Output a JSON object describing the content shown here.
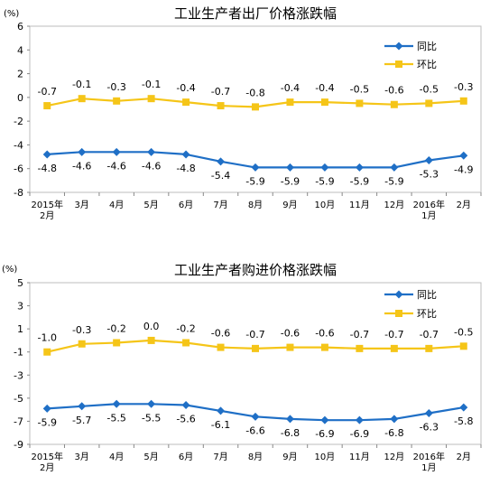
{
  "chart_data": [
    {
      "type": "line",
      "title": "工业生产者出厂价格涨跌幅",
      "unit_label": "(%)",
      "ylim": [
        -8,
        6
      ],
      "yticks": [
        6,
        4,
        2,
        0,
        -2,
        -4,
        -6,
        -8
      ],
      "grid": false,
      "legend_position": "top-right",
      "categories": [
        [
          "2015年",
          "2月"
        ],
        [
          "3月"
        ],
        [
          "4月"
        ],
        [
          "5月"
        ],
        [
          "6月"
        ],
        [
          "7月"
        ],
        [
          "8月"
        ],
        [
          "9月"
        ],
        [
          "10月"
        ],
        [
          "11月"
        ],
        [
          "12月"
        ],
        [
          "2016年",
          "1月"
        ],
        [
          "2月"
        ]
      ],
      "series": [
        {
          "name": "同比",
          "color": "#1f6fc6",
          "marker": "diamond",
          "label_position": "below",
          "values": [
            -4.8,
            -4.6,
            -4.6,
            -4.6,
            -4.8,
            -5.4,
            -5.9,
            -5.9,
            -5.9,
            -5.9,
            -5.9,
            -5.3,
            -4.9
          ]
        },
        {
          "name": "环比",
          "color": "#f5c518",
          "marker": "square",
          "label_position": "above",
          "values": [
            -0.7,
            -0.1,
            -0.3,
            -0.1,
            -0.4,
            -0.7,
            -0.8,
            -0.4,
            -0.4,
            -0.5,
            -0.6,
            -0.5,
            -0.3
          ]
        }
      ]
    },
    {
      "type": "line",
      "title": "工业生产者购进价格涨跌幅",
      "unit_label": "(%)",
      "ylim": [
        -9,
        5
      ],
      "yticks": [
        5,
        3,
        1,
        -1,
        -3,
        -5,
        -7,
        -9
      ],
      "grid": false,
      "legend_position": "top-right",
      "categories": [
        [
          "2015年",
          "2月"
        ],
        [
          "3月"
        ],
        [
          "4月"
        ],
        [
          "5月"
        ],
        [
          "6月"
        ],
        [
          "7月"
        ],
        [
          "8月"
        ],
        [
          "9月"
        ],
        [
          "10月"
        ],
        [
          "11月"
        ],
        [
          "12月"
        ],
        [
          "2016年",
          "1月"
        ],
        [
          "2月"
        ]
      ],
      "series": [
        {
          "name": "同比",
          "color": "#1f6fc6",
          "marker": "diamond",
          "label_position": "below",
          "values": [
            -5.9,
            -5.7,
            -5.5,
            -5.5,
            -5.6,
            -6.1,
            -6.6,
            -6.8,
            -6.9,
            -6.9,
            -6.8,
            -6.3,
            -5.8
          ]
        },
        {
          "name": "环比",
          "color": "#f5c518",
          "marker": "square",
          "label_position": "above",
          "values": [
            -1.0,
            -0.3,
            -0.2,
            0.0,
            -0.2,
            -0.6,
            -0.7,
            -0.6,
            -0.6,
            -0.7,
            -0.7,
            -0.7,
            -0.5
          ]
        }
      ]
    }
  ]
}
